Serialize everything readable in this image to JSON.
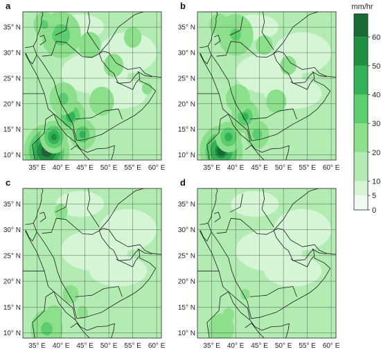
{
  "panels": [
    {
      "letter": "a",
      "level": 1.0
    },
    {
      "letter": "b",
      "level": 0.85
    },
    {
      "letter": "c",
      "level": 0.45
    },
    {
      "letter": "d",
      "level": 0.35
    }
  ],
  "lat_ticks": [
    10,
    15,
    20,
    25,
    30,
    35
  ],
  "lon_ticks": [
    35,
    40,
    45,
    50,
    55,
    60
  ],
  "lat_suffix": "N",
  "lon_suffix": "E",
  "colorbar": {
    "unit": "mm/hr",
    "ticks": [
      0,
      5,
      10,
      20,
      30,
      40,
      50,
      60
    ],
    "colors": [
      "#f0faf0",
      "#d6f5d6",
      "#b3ecb3",
      "#8ce08c",
      "#5cce70",
      "#33b356",
      "#1f8f40",
      "#186b35",
      "#2e5b3b"
    ]
  }
}
